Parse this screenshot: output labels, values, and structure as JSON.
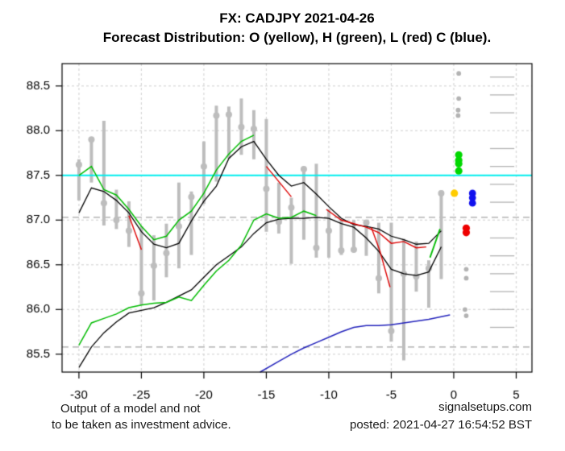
{
  "header": {
    "title": "FX: CADJPY 2021-04-26",
    "subtitle": "Forecast Distribution: O (yellow), H (green), L (red) C (blue)."
  },
  "footer": {
    "disclaimer_line1": "Output of a model and not",
    "disclaimer_line2": "to be taken as investment advice.",
    "site": "signalsetups.com",
    "posted": "posted: 2021-04-27 16:54:52 BST"
  },
  "chart_data": {
    "type": "line",
    "title": "FX: CADJPY 2021-04-26",
    "subtitle": "Forecast Distribution: O (yellow), H (green), L (red) C (blue).",
    "xlabel": "",
    "ylabel": "",
    "xlim": [
      -31.35,
      6.26
    ],
    "ylim": [
      85.3,
      88.75
    ],
    "x_ticks": [
      -30,
      -25,
      -20,
      -15,
      -10,
      -5,
      0,
      5
    ],
    "y_ticks": [
      85.5,
      86.0,
      86.5,
      87.0,
      87.5,
      88.0,
      88.5
    ],
    "grid": true,
    "cyan_hline": 87.5,
    "dashed_hlines": [
      87.03,
      85.58
    ],
    "right_ruler": {
      "x_start": 2.9,
      "x_end": 4.85,
      "levels": [
        85.8,
        86.0,
        86.2,
        86.4,
        86.6,
        86.8,
        87.2,
        87.4,
        87.6,
        87.8,
        88.2,
        88.4,
        88.6
      ]
    },
    "bars_high_low_close": [
      [
        -30,
        87.22,
        87.68,
        87.62
      ],
      [
        -29,
        87.42,
        87.93,
        87.9
      ],
      [
        -28,
        86.94,
        88.11,
        87.19
      ],
      [
        -27,
        86.9,
        87.34,
        87.0
      ],
      [
        -26,
        86.7,
        87.21,
        86.88
      ],
      [
        -25,
        86.05,
        86.93,
        86.18
      ],
      [
        -24,
        86.1,
        86.83,
        86.49
      ],
      [
        -23,
        86.36,
        86.96,
        86.63
      ],
      [
        -22,
        86.46,
        87.42,
        86.93
      ],
      [
        -21,
        86.61,
        87.32,
        87.26
      ],
      [
        -20,
        87.18,
        87.88,
        87.6
      ],
      [
        -19,
        87.43,
        88.28,
        88.17
      ],
      [
        -18,
        87.69,
        88.27,
        88.18
      ],
      [
        -17,
        87.73,
        88.36,
        88.04
      ],
      [
        -16,
        87.68,
        88.23,
        88.02
      ],
      [
        -15,
        86.87,
        88.13,
        87.35
      ],
      [
        -14,
        86.85,
        87.42,
        86.98
      ],
      [
        -13,
        86.51,
        87.25,
        87.14
      ],
      [
        -12,
        86.78,
        87.6,
        87.57
      ],
      [
        -11,
        86.58,
        87.63,
        86.69
      ],
      [
        -10,
        86.58,
        87.12,
        86.88
      ],
      [
        -9,
        86.61,
        87.01,
        86.66
      ],
      [
        -8,
        86.64,
        87.0,
        86.67
      ],
      [
        -7,
        86.6,
        86.99,
        86.97
      ],
      [
        -6,
        86.18,
        86.97,
        86.35
      ],
      [
        -5,
        85.64,
        86.97,
        85.76
      ],
      [
        -4,
        85.43,
        86.79,
        86.4
      ],
      [
        -3,
        86.2,
        86.76,
        86.37
      ],
      [
        -2,
        86.02,
        86.55,
        86.46
      ],
      [
        -1,
        86.34,
        87.33,
        87.3
      ]
    ],
    "series": {
      "upper_green_H": [
        [
          -30,
          87.5
        ],
        [
          -29,
          87.6
        ],
        [
          -28,
          87.34
        ],
        [
          -27,
          87.28
        ],
        [
          -26,
          87.12
        ],
        [
          -25,
          86.93
        ],
        [
          -24,
          86.78
        ],
        [
          -23,
          86.82
        ],
        [
          -22,
          87.0
        ],
        [
          -21,
          87.1
        ],
        [
          -20,
          87.3
        ],
        [
          -19,
          87.56
        ],
        [
          -18,
          87.74
        ],
        [
          -17,
          87.88
        ],
        [
          -16,
          87.95
        ]
      ],
      "upper_black": [
        [
          -30,
          87.08
        ],
        [
          -29,
          87.36
        ],
        [
          -28,
          87.32
        ],
        [
          -27,
          87.22
        ],
        [
          -26,
          87.08
        ],
        [
          -25,
          86.87
        ],
        [
          -24,
          86.73
        ],
        [
          -23,
          86.69
        ],
        [
          -22,
          86.74
        ],
        [
          -21,
          86.99
        ],
        [
          -20,
          87.21
        ],
        [
          -19,
          87.38
        ],
        [
          -18,
          87.69
        ],
        [
          -17,
          87.82
        ],
        [
          -16,
          87.88
        ],
        [
          -15,
          87.68
        ],
        [
          -14,
          87.5
        ],
        [
          -13,
          87.38
        ],
        [
          -12,
          87.42
        ],
        [
          -11,
          87.29
        ],
        [
          -10,
          87.15
        ],
        [
          -9,
          87.02
        ],
        [
          -8,
          86.95
        ],
        [
          -7,
          86.93
        ],
        [
          -6,
          86.9
        ],
        [
          -5,
          86.82
        ],
        [
          -4,
          86.78
        ],
        [
          -3,
          86.73
        ],
        [
          -2,
          86.74
        ],
        [
          -1,
          86.88
        ]
      ],
      "lower_green": [
        [
          -30,
          85.6
        ],
        [
          -29,
          85.85
        ],
        [
          -28,
          85.9
        ],
        [
          -27,
          85.95
        ],
        [
          -26,
          86.02
        ],
        [
          -25,
          86.05
        ],
        [
          -24,
          86.07
        ],
        [
          -23,
          86.08
        ],
        [
          -22,
          86.14
        ],
        [
          -21,
          86.1
        ],
        [
          -20,
          86.27
        ],
        [
          -19,
          86.43
        ],
        [
          -18,
          86.55
        ],
        [
          -17,
          86.72
        ],
        [
          -16,
          87.0
        ],
        [
          -15,
          87.07
        ],
        [
          -14,
          87.02
        ],
        [
          -13,
          87.03
        ],
        [
          -12,
          87.1
        ],
        [
          -11,
          87.05
        ]
      ],
      "lower_black": [
        [
          -30,
          85.35
        ],
        [
          -29,
          85.58
        ],
        [
          -28,
          85.74
        ],
        [
          -27,
          85.86
        ],
        [
          -26,
          85.96
        ],
        [
          -25,
          85.99
        ],
        [
          -24,
          86.02
        ],
        [
          -23,
          86.08
        ],
        [
          -22,
          86.15
        ],
        [
          -21,
          86.22
        ],
        [
          -20,
          86.36
        ],
        [
          -19,
          86.5
        ],
        [
          -18,
          86.6
        ],
        [
          -17,
          86.7
        ],
        [
          -16,
          86.85
        ],
        [
          -15,
          86.97
        ],
        [
          -14,
          87.01
        ],
        [
          -13,
          87.02
        ],
        [
          -12,
          87.02
        ],
        [
          -11,
          87.03
        ],
        [
          -10,
          87.02
        ],
        [
          -9,
          86.96
        ],
        [
          -8,
          86.92
        ],
        [
          -7,
          86.8
        ],
        [
          -6,
          86.65
        ],
        [
          -5,
          86.45
        ],
        [
          -4,
          86.4
        ],
        [
          -3,
          86.38
        ],
        [
          -2,
          86.42
        ],
        [
          -1,
          86.7
        ]
      ],
      "blue_line": [
        [
          -15.5,
          85.3
        ],
        [
          -14,
          85.42
        ],
        [
          -13,
          85.5
        ],
        [
          -12,
          85.57
        ],
        [
          -11,
          85.63
        ],
        [
          -10,
          85.69
        ],
        [
          -9,
          85.75
        ],
        [
          -8,
          85.8
        ],
        [
          -7,
          85.82
        ],
        [
          -6,
          85.82
        ],
        [
          -5,
          85.83
        ],
        [
          -4,
          85.85
        ],
        [
          -3,
          85.87
        ],
        [
          -2,
          85.89
        ],
        [
          -1,
          85.92
        ],
        [
          -0.3,
          85.94
        ]
      ],
      "green_end_segment": [
        [
          -1.9,
          86.58
        ],
        [
          -1.1,
          86.9
        ]
      ]
    },
    "red_segments": [
      [
        [
          -26.0,
          87.05
        ],
        [
          -25.0,
          86.67
        ]
      ],
      [
        [
          -15.0,
          87.6
        ],
        [
          -13.0,
          87.26
        ]
      ],
      [
        [
          -10.2,
          87.12
        ],
        [
          -9,
          87.0
        ],
        [
          -8,
          86.96
        ],
        [
          -7,
          86.92
        ],
        [
          -6,
          86.86
        ],
        [
          -5,
          86.74
        ],
        [
          -4,
          86.76
        ],
        [
          -3,
          86.69
        ],
        [
          -2.2,
          86.7
        ]
      ],
      [
        [
          -6.6,
          86.92
        ],
        [
          -5.9,
          86.65
        ],
        [
          -5.1,
          86.25
        ]
      ]
    ],
    "forecast_dots": {
      "gray": [
        [
          0.4,
          88.64
        ],
        [
          0.4,
          88.36
        ],
        [
          0.35,
          88.23
        ],
        [
          0.35,
          88.17
        ],
        [
          1.0,
          86.45
        ],
        [
          1.0,
          86.35
        ],
        [
          0.9,
          86.0
        ],
        [
          1.0,
          85.93
        ]
      ],
      "green_H": [
        [
          0.4,
          87.73
        ],
        [
          0.4,
          87.67
        ],
        [
          0.4,
          87.63
        ],
        [
          0.4,
          87.55
        ]
      ],
      "yellow_O": [
        [
          0.05,
          87.3
        ]
      ],
      "blue_C": [
        [
          1.5,
          87.3
        ],
        [
          1.5,
          87.25
        ],
        [
          1.5,
          87.19
        ]
      ],
      "red_L": [
        [
          1.0,
          86.91
        ],
        [
          1.0,
          86.86
        ]
      ]
    },
    "colors": {
      "cyan_line": "#00eeee",
      "green": "#00bb00",
      "green_dot": "#00d800",
      "red": "#dd0000",
      "red_dot": "#ee0000",
      "blue_line": "#2222bb",
      "blue_dot": "#1111ee",
      "yellow_dot": "#ffcc00",
      "bar_gray": "#bdbdbd",
      "scatter_gray": "#b3b3b3",
      "grid": "#d6d6d6",
      "dashed_line": "#a6a6a6",
      "black": "#000000"
    }
  }
}
